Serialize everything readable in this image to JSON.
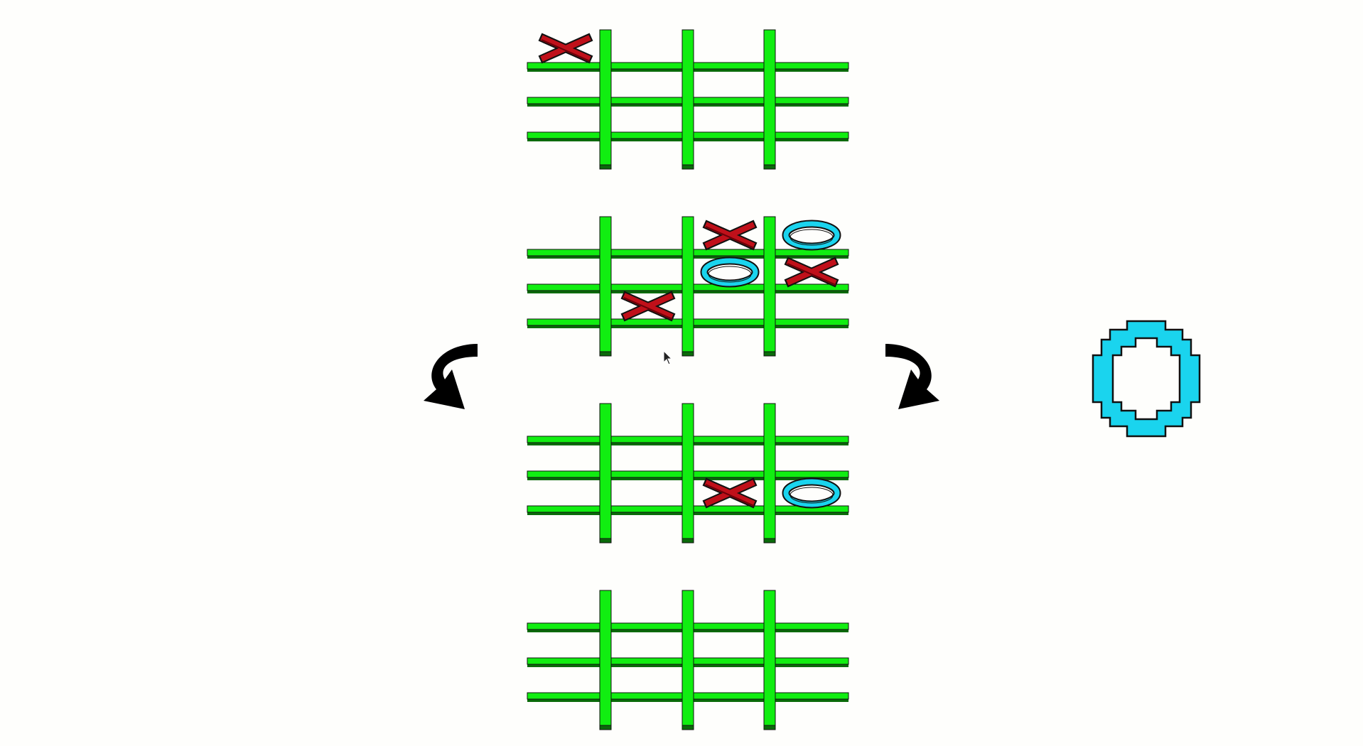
{
  "game": {
    "type": "3D tic-tac-toe",
    "layers": 4,
    "current_turn": "O",
    "colors": {
      "background": "#fefefc",
      "grid": "#11ee11",
      "grid_edge": "#0a6a0a",
      "x_piece": "#c0101a",
      "x_piece_dark": "#6a0008",
      "o_piece": "#1ad4ee",
      "outline": "#111111",
      "arrow": "#000000"
    },
    "controls": {
      "rotate_left_icon": "rotate-left-arrow-icon",
      "rotate_right_icon": "rotate-right-arrow-icon",
      "turn_indicator_icon": "o-turn-indicator-icon"
    },
    "boards": [
      {
        "layer": 1,
        "cells": [
          [
            "X",
            "",
            ""
          ],
          [
            "",
            "",
            ""
          ],
          [
            "",
            "",
            ""
          ]
        ]
      },
      {
        "layer": 2,
        "cells": [
          [
            "",
            "X",
            "O"
          ],
          [
            "",
            "O",
            "X"
          ],
          [
            "X",
            "",
            ""
          ]
        ]
      },
      {
        "layer": 3,
        "cells": [
          [
            "",
            "",
            ""
          ],
          [
            "",
            "",
            ""
          ],
          [
            "",
            "X",
            "O"
          ]
        ]
      },
      {
        "layer": 4,
        "cells": [
          [
            "",
            "",
            ""
          ],
          [
            "",
            "",
            ""
          ],
          [
            "",
            "",
            ""
          ]
        ]
      }
    ]
  }
}
